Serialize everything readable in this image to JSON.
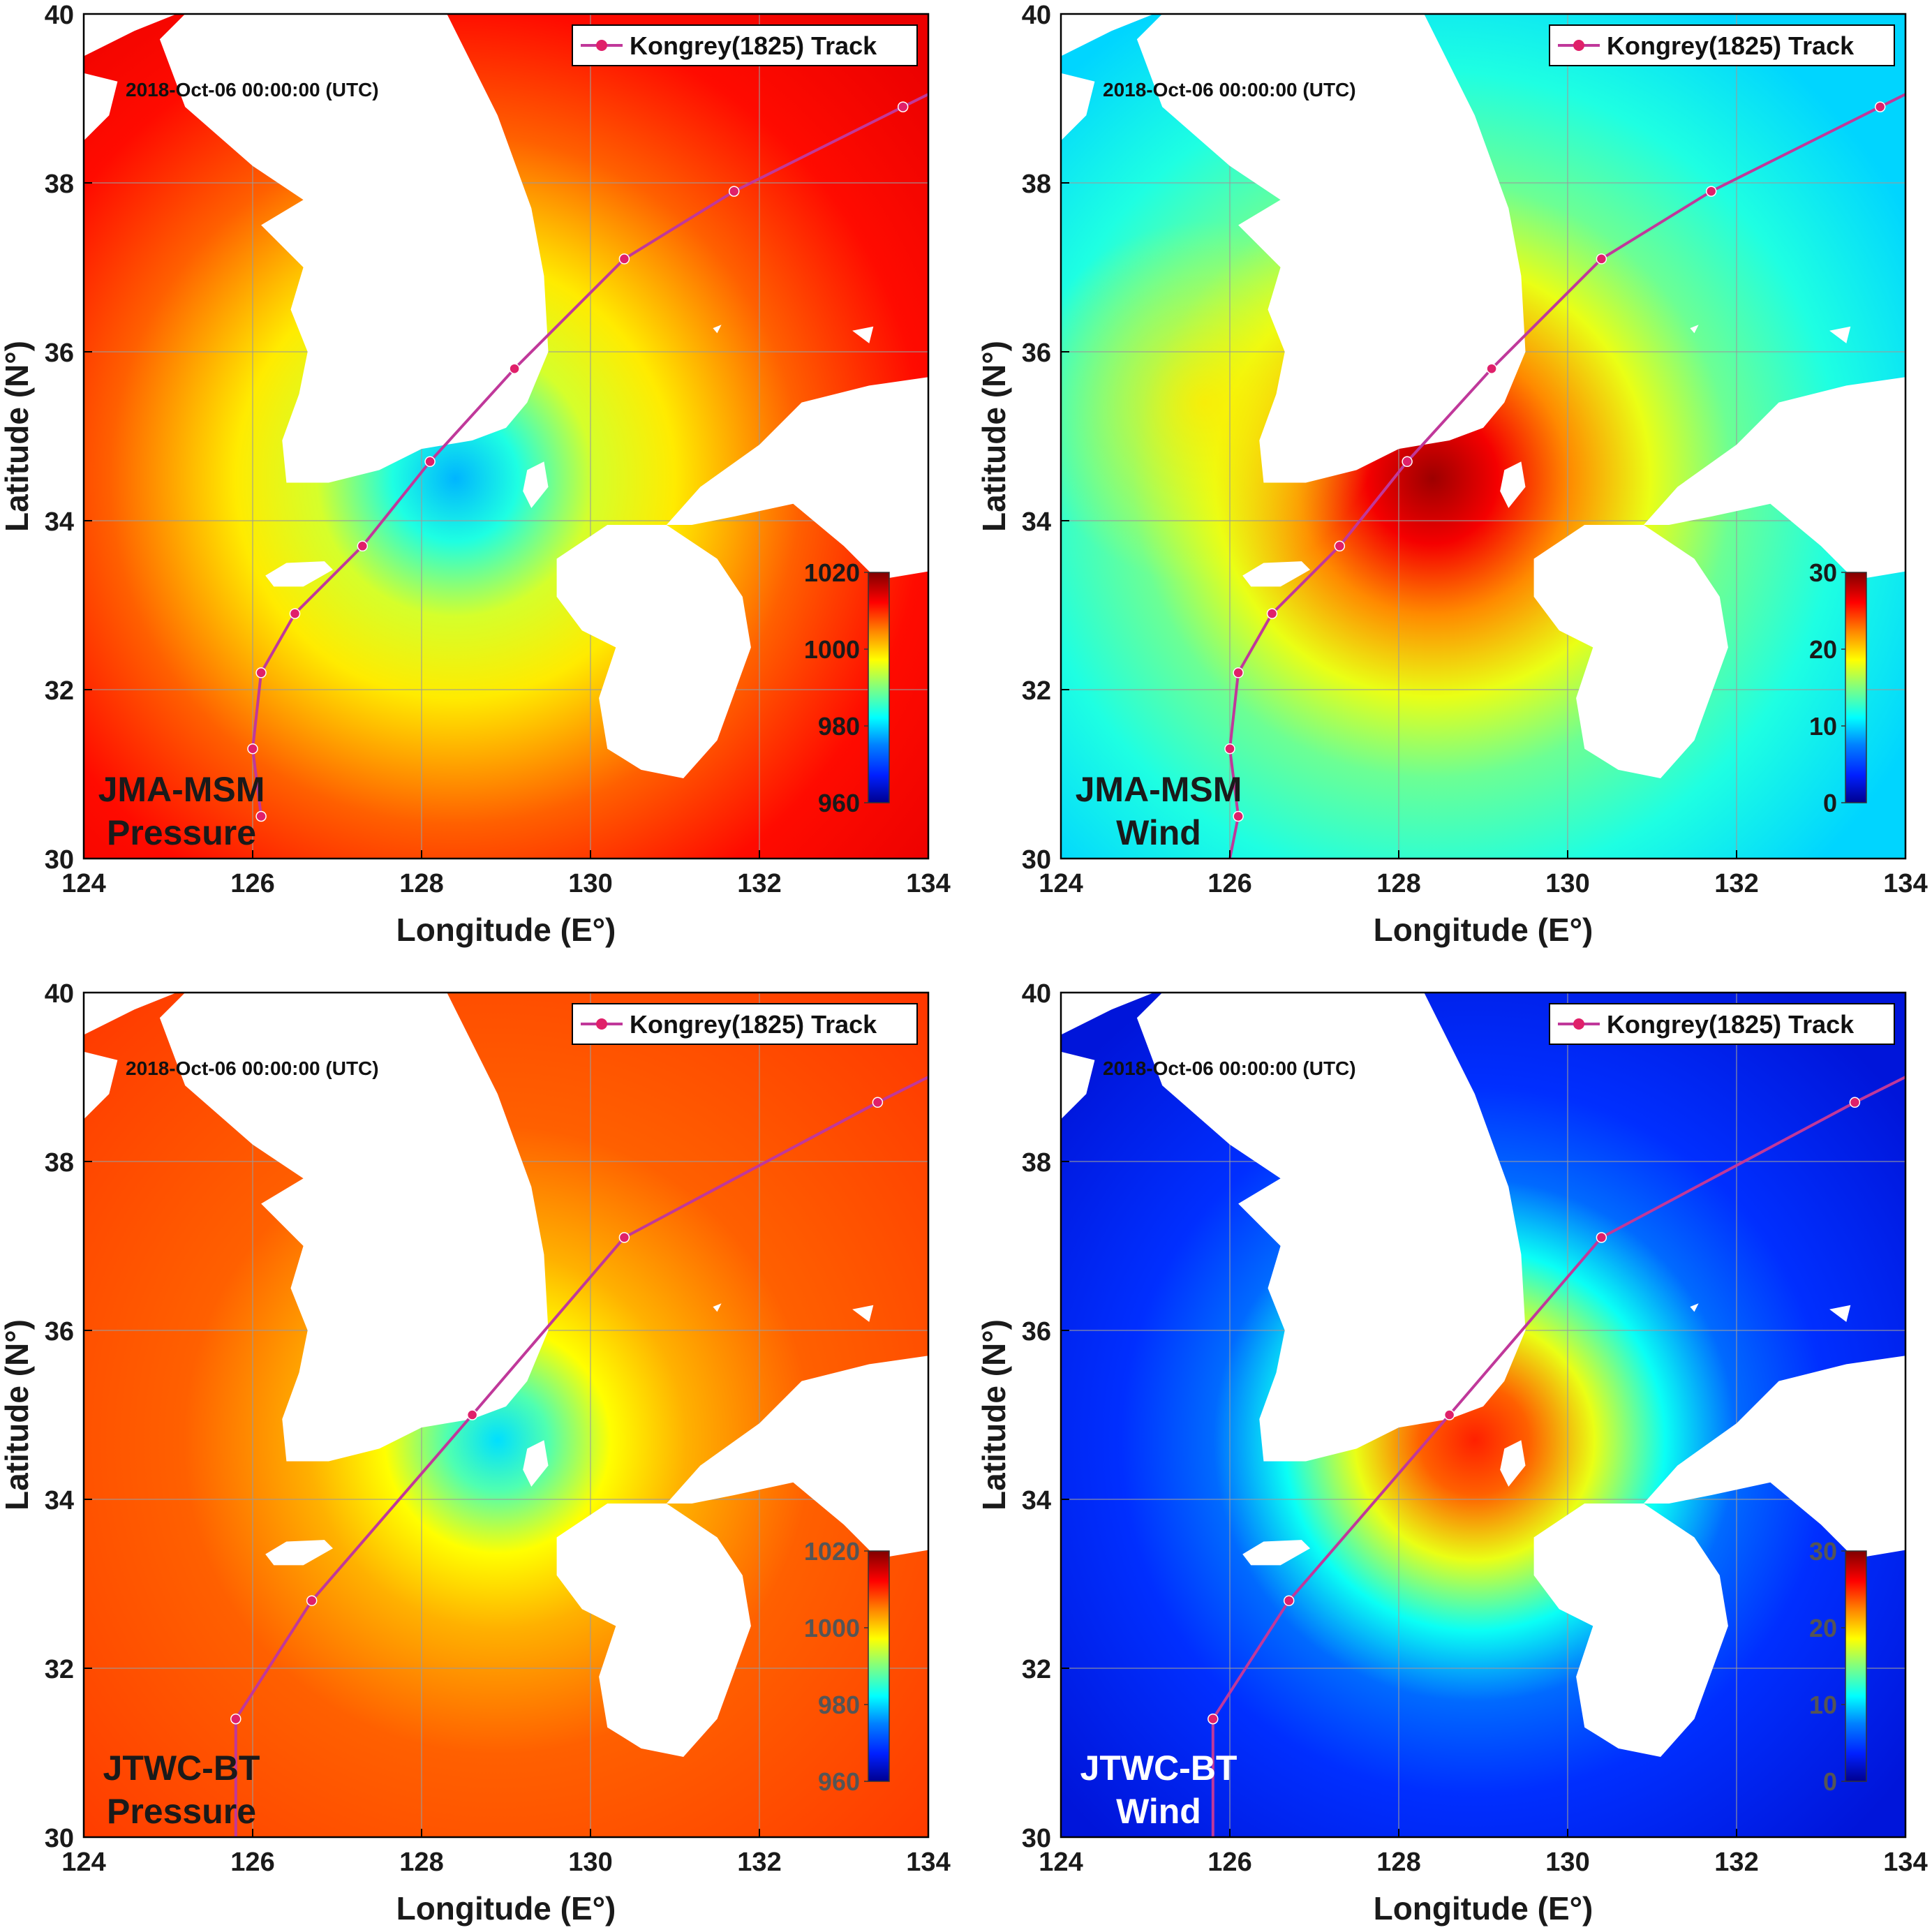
{
  "figure": {
    "panels": [
      {
        "id": "jma-pressure",
        "label_line1": "JMA-MSM",
        "label_line2": "Pressure",
        "label_color": "#1a1a1a",
        "cbtick_color": "#1a1a1a",
        "field": "pressure",
        "model": "jma",
        "timestamp": "2018-Oct-06 00:00:00 (UTC)",
        "legend": "Kongrey(1825) Track",
        "colorbar": {
          "min": 960,
          "max": 1020,
          "ticks": [
            "960",
            "980",
            "1000",
            "1020"
          ]
        },
        "track": [
          [
            126.1,
            30.5
          ],
          [
            126.0,
            31.3
          ],
          [
            126.1,
            32.2
          ],
          [
            126.5,
            32.9
          ],
          [
            127.3,
            33.7
          ],
          [
            128.1,
            34.7
          ],
          [
            129.1,
            35.8
          ],
          [
            130.4,
            37.1
          ],
          [
            131.7,
            37.9
          ],
          [
            133.7,
            38.9
          ],
          [
            134.0,
            39.05
          ]
        ]
      },
      {
        "id": "jma-wind",
        "label_line1": "JMA-MSM",
        "label_line2": "Wind",
        "label_color": "#1a1a1a",
        "cbtick_color": "#1a1a1a",
        "field": "wind",
        "model": "jma",
        "timestamp": "2018-Oct-06 00:00:00 (UTC)",
        "legend": "Kongrey(1825) Track",
        "colorbar": {
          "min": 0,
          "max": 30,
          "ticks": [
            "0",
            "10",
            "20",
            "30"
          ]
        },
        "track": [
          [
            126.0,
            30.0
          ],
          [
            126.1,
            30.5
          ],
          [
            126.0,
            31.3
          ],
          [
            126.1,
            32.2
          ],
          [
            126.5,
            32.9
          ],
          [
            127.3,
            33.7
          ],
          [
            128.1,
            34.7
          ],
          [
            129.1,
            35.8
          ],
          [
            130.4,
            37.1
          ],
          [
            131.7,
            37.9
          ],
          [
            133.7,
            38.9
          ],
          [
            134.0,
            39.05
          ]
        ]
      },
      {
        "id": "jtwc-pressure",
        "label_line1": "JTWC-BT",
        "label_line2": "Pressure",
        "label_color": "#1a1a1a",
        "cbtick_color": "#555555",
        "field": "pressure",
        "model": "jtwc",
        "timestamp": "2018-Oct-06 00:00:00 (UTC)",
        "legend": "Kongrey(1825) Track",
        "colorbar": {
          "min": 960,
          "max": 1020,
          "ticks": [
            "960",
            "980",
            "1000",
            "1020"
          ]
        },
        "track": [
          [
            125.8,
            30.0
          ],
          [
            125.8,
            31.4
          ],
          [
            126.7,
            32.8
          ],
          [
            128.6,
            35.0
          ],
          [
            130.4,
            37.1
          ],
          [
            133.4,
            38.7
          ],
          [
            134.0,
            39.0
          ]
        ]
      },
      {
        "id": "jtwc-wind",
        "label_line1": "JTWC-BT",
        "label_line2": "Wind",
        "label_color": "#ffffff",
        "cbtick_color": "#555555",
        "field": "wind",
        "model": "jtwc",
        "timestamp": "2018-Oct-06 00:00:00 (UTC)",
        "legend": "Kongrey(1825) Track",
        "colorbar": {
          "min": 0,
          "max": 30,
          "ticks": [
            "0",
            "10",
            "20",
            "30"
          ]
        },
        "track": [
          [
            125.8,
            30.0
          ],
          [
            125.8,
            31.4
          ],
          [
            126.7,
            32.8
          ],
          [
            128.6,
            35.0
          ],
          [
            130.4,
            37.1
          ],
          [
            133.4,
            38.7
          ],
          [
            134.0,
            39.0
          ]
        ]
      }
    ],
    "x_axis": {
      "label": "Longitude (E°)",
      "min": 124,
      "max": 134,
      "ticks": [
        "124",
        "126",
        "128",
        "130",
        "132",
        "134"
      ]
    },
    "y_axis": {
      "label": "Latitude (N°)",
      "min": 30,
      "max": 40,
      "ticks": [
        "30",
        "32",
        "34",
        "36",
        "38",
        "40"
      ]
    },
    "track_color": "#c0389a",
    "marker_color": "#e0206a"
  }
}
